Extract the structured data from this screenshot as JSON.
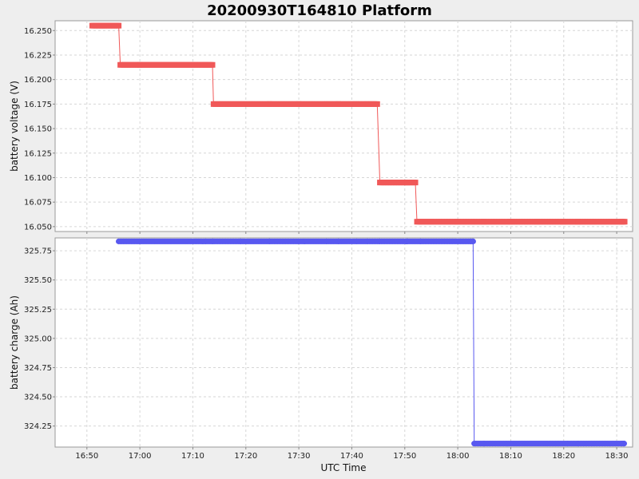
{
  "chart_data": {
    "title": "20200930T164810 Platform",
    "xlabel": "UTC Time",
    "x_ticks": [
      "16:50",
      "17:00",
      "17:10",
      "17:20",
      "17:30",
      "17:40",
      "17:50",
      "18:00",
      "18:10",
      "18:20",
      "18:30"
    ],
    "x_range": [
      "16:44",
      "18:33"
    ],
    "grid": true,
    "panels": [
      {
        "type": "line",
        "ylabel": "battery voltage (V)",
        "ylim": [
          16.045,
          16.26
        ],
        "y_ticks": [
          "16.250",
          "16.225",
          "16.200",
          "16.175",
          "16.150",
          "16.125",
          "16.100",
          "16.075",
          "16.050"
        ],
        "series": [
          {
            "color": "#f05858",
            "marker": "square",
            "points": [
              [
                "16:51",
                16.255
              ],
              [
                "16:53",
                16.255
              ],
              [
                "16:56",
                16.255
              ],
              [
                "16:56.3",
                16.215
              ],
              [
                "16:57.5",
                16.215
              ],
              [
                "17:00",
                16.215
              ],
              [
                "17:03",
                16.215
              ],
              [
                "17:06",
                16.215
              ],
              [
                "17:09",
                16.215
              ],
              [
                "17:10.8",
                16.215
              ],
              [
                "17:12.5",
                16.215
              ],
              [
                "17:13.7",
                16.215
              ],
              [
                "17:13.9",
                16.175
              ],
              [
                "17:19",
                16.175
              ],
              [
                "17:24.5",
                16.175
              ],
              [
                "17:30",
                16.175
              ],
              [
                "17:35.3",
                16.175
              ],
              [
                "17:37.5",
                16.175
              ],
              [
                "17:39",
                16.175
              ],
              [
                "17:41",
                16.175
              ],
              [
                "17:43",
                16.175
              ],
              [
                "17:44.8",
                16.175
              ],
              [
                "17:45.3",
                16.095
              ],
              [
                "17:50.5",
                16.095
              ],
              [
                "17:52",
                16.095
              ],
              [
                "17:52.3",
                16.055
              ],
              [
                "17:55",
                16.055
              ],
              [
                "18:00",
                16.055
              ],
              [
                "18:05",
                16.055
              ],
              [
                "18:10",
                16.055
              ],
              [
                "18:15",
                16.055
              ],
              [
                "18:20",
                16.055
              ],
              [
                "18:22.8",
                16.055
              ],
              [
                "18:25.5",
                16.055
              ],
              [
                "18:31",
                16.055
              ],
              [
                "18:31.5",
                16.055
              ]
            ]
          }
        ]
      },
      {
        "type": "line",
        "ylabel": "battery charge (Ah)",
        "ylim": [
          324.07,
          325.86
        ],
        "y_ticks": [
          "325.75",
          "325.50",
          "325.25",
          "325.00",
          "324.75",
          "324.50",
          "324.25"
        ],
        "series": [
          {
            "color": "#5858f0",
            "marker": "circle",
            "points": [
              [
                "16:56",
                325.83
              ],
              [
                "16:56.6",
                325.83
              ],
              [
                "16:57.8",
                325.83
              ],
              [
                "17:00",
                325.83
              ],
              [
                "17:03",
                325.83
              ],
              [
                "17:06",
                325.83
              ],
              [
                "17:09",
                325.83
              ],
              [
                "17:10.8",
                325.83
              ],
              [
                "17:12.5",
                325.83
              ],
              [
                "17:13.8",
                325.83
              ],
              [
                "17:19",
                325.83
              ],
              [
                "17:24.5",
                325.83
              ],
              [
                "17:30",
                325.83
              ],
              [
                "17:35.3",
                325.83
              ],
              [
                "17:37.5",
                325.83
              ],
              [
                "17:39",
                325.83
              ],
              [
                "17:41",
                325.83
              ],
              [
                "17:43",
                325.83
              ],
              [
                "17:45.3",
                325.83
              ],
              [
                "17:50.5",
                325.83
              ],
              [
                "17:53",
                325.83
              ],
              [
                "17:56",
                325.83
              ],
              [
                "17:59",
                325.83
              ],
              [
                "18:02.5",
                325.83
              ],
              [
                "18:02.9",
                325.83
              ],
              [
                "18:03.1",
                324.1
              ],
              [
                "18:05",
                324.1
              ],
              [
                "18:08",
                324.1
              ],
              [
                "18:11",
                324.1
              ],
              [
                "18:14",
                324.1
              ],
              [
                "18:17",
                324.1
              ],
              [
                "18:20.8",
                324.1
              ],
              [
                "18:22",
                324.1
              ],
              [
                "18:22.8",
                324.1
              ],
              [
                "18:25.5",
                324.1
              ],
              [
                "18:31",
                324.1
              ],
              [
                "18:31.4",
                324.1
              ]
            ]
          }
        ]
      }
    ]
  }
}
